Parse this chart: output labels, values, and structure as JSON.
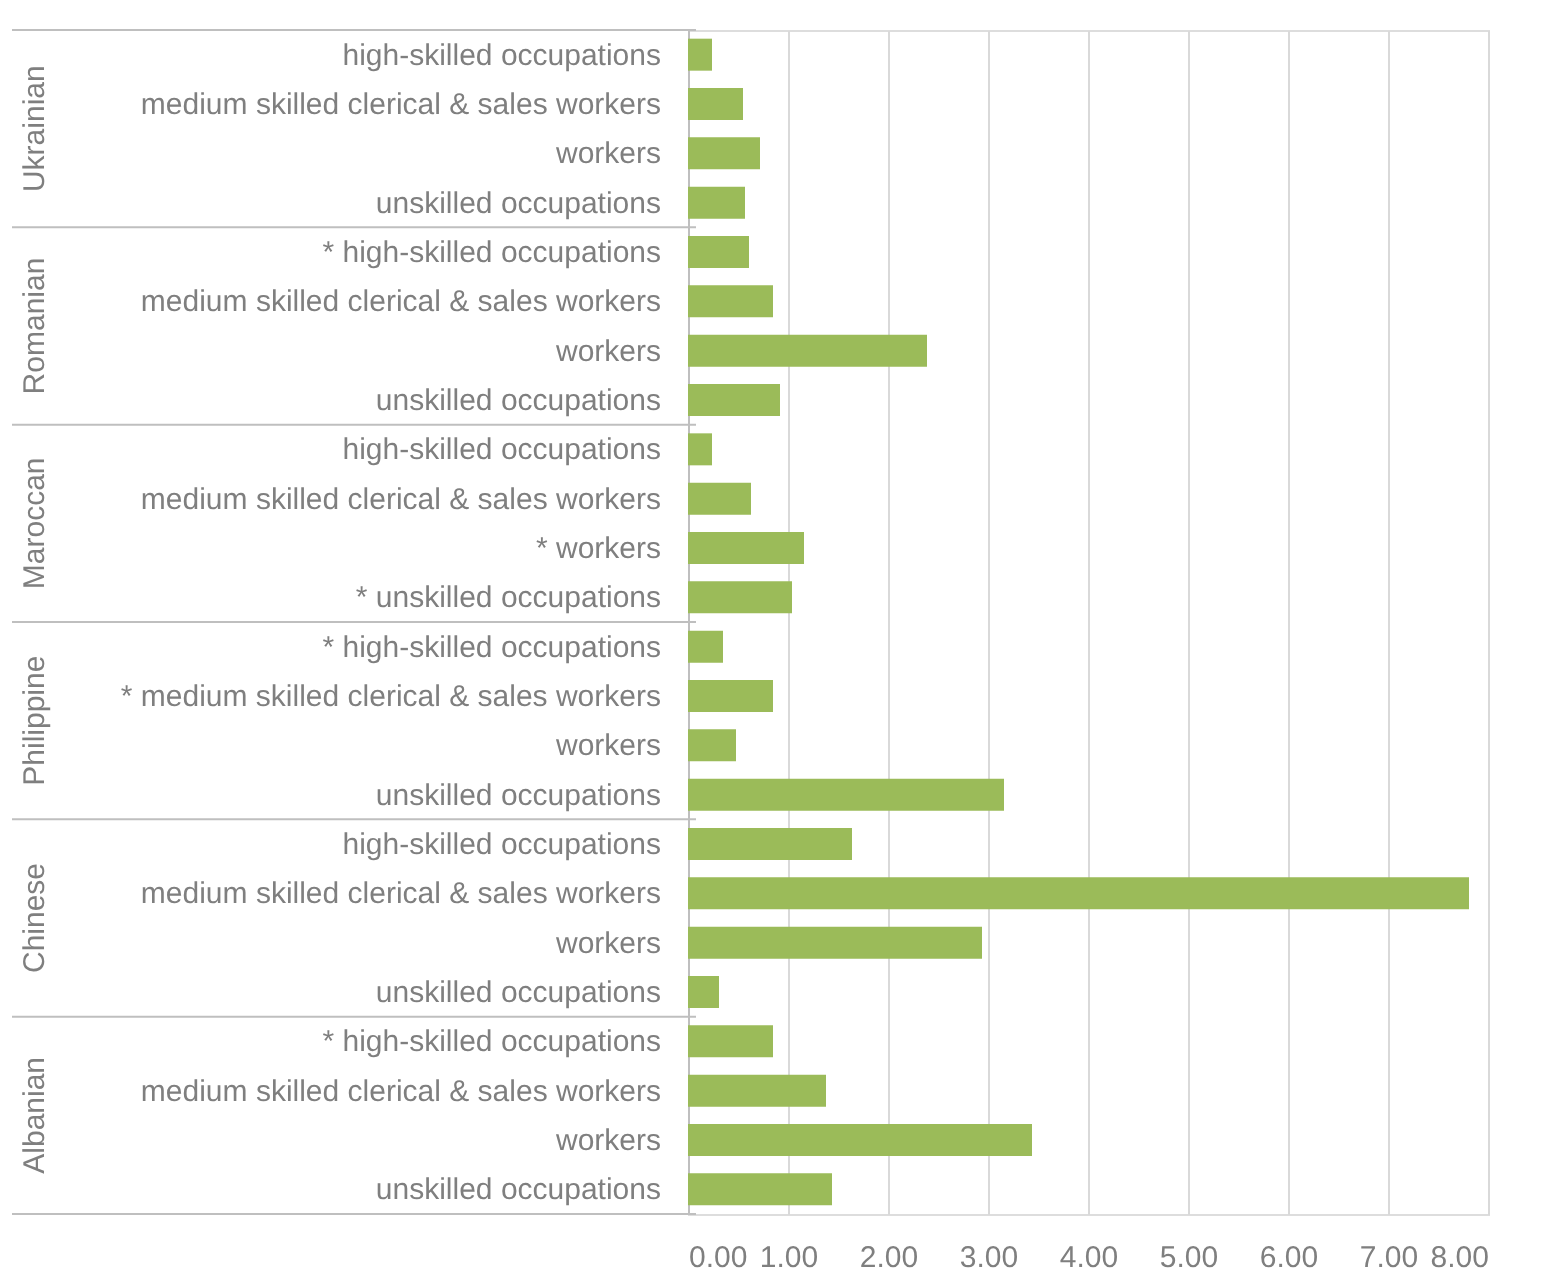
{
  "chart_data": {
    "type": "bar",
    "orientation": "horizontal",
    "categories": [
      "high-skilled occupations",
      "medium skilled clerical & sales workers",
      "workers",
      "unskilled occupations",
      "* high-skilled occupations",
      "medium skilled clerical & sales workers",
      "workers",
      "unskilled occupations",
      "high-skilled occupations",
      "medium skilled clerical & sales workers",
      "* workers",
      "* unskilled occupations",
      "* high-skilled occupations",
      "* medium skilled clerical & sales workers",
      "workers",
      "unskilled occupations",
      "high-skilled occupations",
      "medium skilled clerical & sales workers",
      "workers",
      "unskilled occupations",
      "* high-skilled occupations",
      "medium skilled clerical & sales workers",
      "workers",
      "unskilled occupations"
    ],
    "values": [
      0.24,
      0.55,
      0.72,
      0.57,
      0.61,
      0.85,
      2.39,
      0.92,
      0.24,
      0.63,
      1.16,
      1.04,
      0.35,
      0.85,
      0.48,
      3.16,
      1.64,
      7.81,
      2.94,
      0.31,
      0.85,
      1.38,
      3.44,
      1.44
    ],
    "color": "#9bbb59",
    "xlim": [
      0,
      8
    ],
    "xticks": [
      {
        "value": 0,
        "label": "0.00"
      },
      {
        "value": 1,
        "label": "1.00"
      },
      {
        "value": 2,
        "label": "2.00"
      },
      {
        "value": 3,
        "label": "3.00"
      },
      {
        "value": 4,
        "label": "4.00"
      },
      {
        "value": 5,
        "label": "5.00"
      },
      {
        "value": 6,
        "label": "6.00"
      },
      {
        "value": 7,
        "label": "7.00"
      },
      {
        "value": 8,
        "label": "8.00"
      }
    ],
    "grid": "x",
    "annotations": [
      "Ukrainian",
      "Romanian",
      "Maroccan",
      "Philippine",
      "Chinese",
      "Albanian"
    ]
  }
}
